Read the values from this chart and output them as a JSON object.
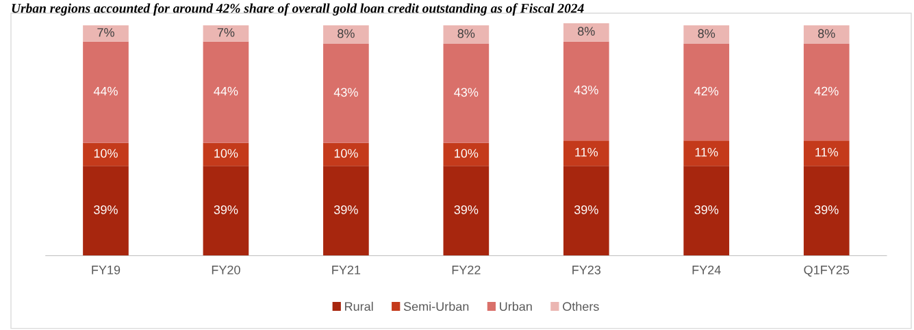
{
  "chart_data": {
    "type": "bar",
    "title": "Urban regions accounted for around 42% share of overall gold loan credit outstanding as of Fiscal 2024",
    "categories": [
      "FY19",
      "FY20",
      "FY21",
      "FY22",
      "FY23",
      "FY24",
      "Q1FY25"
    ],
    "stacked": true,
    "legend": "bottom",
    "grid": false,
    "tick_labels": "x",
    "series": [
      {
        "name": "Rural",
        "color": "#a7260e",
        "values": [
          39,
          39,
          39,
          39,
          39,
          39,
          39
        ],
        "value_labels": [
          "39%",
          "39%",
          "39%",
          "39%",
          "39%",
          "39%",
          "39%"
        ]
      },
      {
        "name": "Semi-Urban",
        "color": "#c43a1b",
        "values": [
          10,
          10,
          10,
          10,
          11,
          11,
          11
        ],
        "value_labels": [
          "10%",
          "10%",
          "10%",
          "10%",
          "11%",
          "11%",
          "11%"
        ]
      },
      {
        "name": "Urban",
        "color": "#d9706a",
        "values": [
          44,
          44,
          43,
          43,
          43,
          42,
          42
        ],
        "value_labels": [
          "44%",
          "44%",
          "43%",
          "43%",
          "43%",
          "42%",
          "42%"
        ]
      },
      {
        "name": "Others",
        "color": "#ebb6b2",
        "values": [
          7,
          7,
          8,
          8,
          8,
          8,
          8
        ],
        "value_labels": [
          "7%",
          "7%",
          "8%",
          "8%",
          "8%",
          "8%",
          "8%"
        ]
      }
    ]
  }
}
